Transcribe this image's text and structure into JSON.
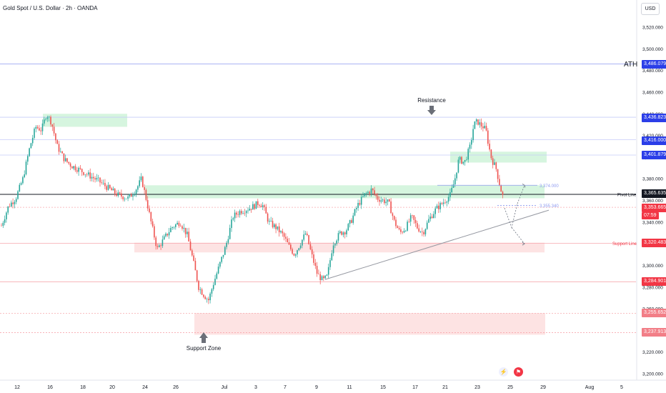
{
  "header": {
    "title": "Gold Spot / U.S. Dollar · 2h · OANDA",
    "currency_button": "USD"
  },
  "colors": {
    "up": "#26a69a",
    "down": "#ef5350",
    "resistance_zone": "#d6f5df",
    "support_zone": "#fde3e3",
    "line_blue": "#5b6ee8",
    "pivot": "#131722",
    "tag_blue": "#2b3ee8",
    "tag_red": "#f23645"
  },
  "chart_data": {
    "type": "candlestick",
    "symbol": "Gold Spot / U.S. Dollar",
    "interval": "2h",
    "source": "OANDA",
    "ylim": [
      3195,
      3545
    ],
    "y_ticks": [
      3520,
      3500,
      3480,
      3460,
      3440,
      3420,
      3400,
      3380,
      3360,
      3340,
      3320,
      3300,
      3280,
      3260,
      3240,
      3220,
      3200
    ],
    "x_ticks": [
      "12",
      "16",
      "18",
      "20",
      "24",
      "26",
      "Jul",
      "3",
      "7",
      "9",
      "11",
      "15",
      "17",
      "21",
      "23",
      "25",
      "29",
      "Aug",
      "5"
    ],
    "price_series": [
      [
        0,
        3333
      ],
      [
        12,
        3355
      ],
      [
        22,
        3362
      ],
      [
        32,
        3380
      ],
      [
        42,
        3410
      ],
      [
        50,
        3428
      ],
      [
        58,
        3425
      ],
      [
        65,
        3440
      ],
      [
        72,
        3432
      ],
      [
        80,
        3410
      ],
      [
        90,
        3398
      ],
      [
        100,
        3392
      ],
      [
        112,
        3388
      ],
      [
        125,
        3383
      ],
      [
        138,
        3378
      ],
      [
        150,
        3372
      ],
      [
        165,
        3365
      ],
      [
        180,
        3362
      ],
      [
        192,
        3372
      ],
      [
        198,
        3380
      ],
      [
        205,
        3360
      ],
      [
        212,
        3338
      ],
      [
        220,
        3315
      ],
      [
        230,
        3325
      ],
      [
        240,
        3335
      ],
      [
        252,
        3340
      ],
      [
        262,
        3328
      ],
      [
        270,
        3305
      ],
      [
        278,
        3280
      ],
      [
        286,
        3272
      ],
      [
        292,
        3268
      ],
      [
        298,
        3282
      ],
      [
        306,
        3298
      ],
      [
        316,
        3318
      ],
      [
        326,
        3345
      ],
      [
        336,
        3350
      ],
      [
        346,
        3352
      ],
      [
        356,
        3355
      ],
      [
        362,
        3358
      ],
      [
        368,
        3355
      ],
      [
        376,
        3340
      ],
      [
        386,
        3335
      ],
      [
        396,
        3328
      ],
      [
        404,
        3318
      ],
      [
        412,
        3310
      ],
      [
        420,
        3320
      ],
      [
        428,
        3330
      ],
      [
        436,
        3310
      ],
      [
        444,
        3292
      ],
      [
        452,
        3286
      ],
      [
        458,
        3290
      ],
      [
        466,
        3320
      ],
      [
        476,
        3330
      ],
      [
        484,
        3332
      ],
      [
        492,
        3342
      ],
      [
        500,
        3355
      ],
      [
        510,
        3365
      ],
      [
        520,
        3370
      ],
      [
        528,
        3362
      ],
      [
        536,
        3360
      ],
      [
        544,
        3358
      ],
      [
        552,
        3340
      ],
      [
        560,
        3330
      ],
      [
        568,
        3335
      ],
      [
        576,
        3345
      ],
      [
        584,
        3335
      ],
      [
        592,
        3330
      ],
      [
        600,
        3342
      ],
      [
        610,
        3352
      ],
      [
        620,
        3358
      ],
      [
        630,
        3365
      ],
      [
        636,
        3378
      ],
      [
        642,
        3398
      ],
      [
        650,
        3395
      ],
      [
        658,
        3410
      ],
      [
        663,
        3430
      ],
      [
        668,
        3433
      ],
      [
        672,
        3430
      ],
      [
        676,
        3428
      ],
      [
        680,
        3425
      ],
      [
        684,
        3410
      ],
      [
        688,
        3398
      ],
      [
        694,
        3390
      ],
      [
        700,
        3372
      ],
      [
        704,
        3363
      ],
      [
        706,
        3356
      ]
    ],
    "levels": [
      {
        "label": "3,486.079",
        "value": 3486.079,
        "kind": "ATH"
      },
      {
        "label": "3,436.823",
        "value": 3436.823,
        "kind": "Resistance"
      },
      {
        "label": "3,416.000",
        "value": 3416.0,
        "kind": "level"
      },
      {
        "label": "3,401.879",
        "value": 3401.879,
        "kind": "level"
      },
      {
        "label": "3,365.635",
        "value": 3365.635,
        "kind": "Pivot Line"
      },
      {
        "label": "3,353.665",
        "value": 3353.665,
        "kind": "current price"
      },
      {
        "label": "3,320.483",
        "value": 3320.483,
        "kind": "Support Line"
      },
      {
        "label": "3,284.901",
        "value": 3284.901,
        "kind": "level"
      },
      {
        "label": "3,255.652",
        "value": 3255.652,
        "kind": "Support Zone top"
      },
      {
        "label": "3,237.913",
        "value": 3237.913,
        "kind": "Support Zone bottom"
      }
    ],
    "zones": [
      {
        "name": "resistance-zone-left",
        "x_from": 60,
        "x_to": 178,
        "y_top": 3440,
        "y_bottom": 3428
      },
      {
        "name": "pivot-zone",
        "x_from": 203,
        "x_to": 762,
        "y_top": 3374,
        "y_bottom": 3362
      },
      {
        "name": "resistance-zone-right",
        "x_from": 630,
        "x_to": 765,
        "y_top": 3405,
        "y_bottom": 3395
      },
      {
        "name": "support-line-zone",
        "x_from": 188,
        "x_to": 762,
        "y_top": 3321,
        "y_bottom": 3312
      },
      {
        "name": "support-zone",
        "x_from": 272,
        "x_to": 763,
        "y_top": 3256,
        "y_bottom": 3236
      }
    ],
    "annotations": {
      "ath": "ATH",
      "resistance": "Resistance",
      "support_zone": "Support Zone",
      "pivot_line": "Pivot Line",
      "support_line": "Support Line",
      "target_upper": "3,374.000",
      "target_lower": "3,355.340",
      "countdown": "07:59"
    }
  }
}
